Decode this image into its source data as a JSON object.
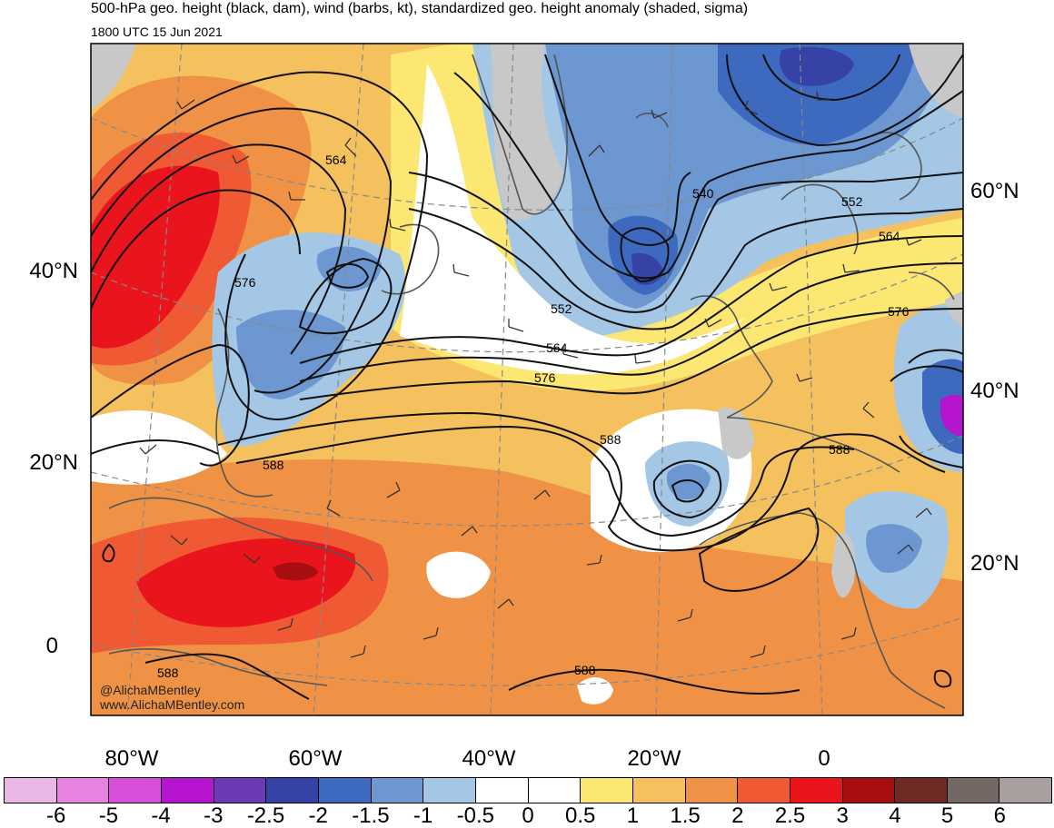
{
  "title": "500-hPa geo. height (black, dam), wind (barbs, kt), standardized geo. height anomaly (shaded, sigma)",
  "valid_time": "1800 UTC 15 Jun 2021",
  "credit": {
    "handle": "@AlichaMBentley",
    "site": "www.AlichaMBentley.com"
  },
  "latitude_labels_left": [
    {
      "text": "40°N"
    },
    {
      "text": "20°N"
    },
    {
      "text": "0"
    }
  ],
  "latitude_labels_right": [
    {
      "text": "60°N"
    },
    {
      "text": "40°N"
    },
    {
      "text": "20°N"
    }
  ],
  "longitude_labels": [
    {
      "text": "80°W"
    },
    {
      "text": "60°W"
    },
    {
      "text": "40°W"
    },
    {
      "text": "20°W"
    },
    {
      "text": "0"
    }
  ],
  "contour_labels": [
    "564",
    "576",
    "540",
    "552",
    "564",
    "576",
    "552",
    "564",
    "576",
    "588",
    "588",
    "588",
    "588",
    "588"
  ],
  "colorbar": {
    "colors": [
      "#e9b6e5",
      "#e683e0",
      "#d84fd9",
      "#b615cf",
      "#6a3bb4",
      "#3642a6",
      "#3d6abf",
      "#6d97d1",
      "#a5c7e6",
      "#ffffff",
      "#ffffff",
      "#fbe771",
      "#f5c15e",
      "#f09245",
      "#ef5a34",
      "#e9141c",
      "#a70e10",
      "#6f2a26",
      "#736863",
      "#a89f9e"
    ],
    "labels": [
      "-6",
      "-5",
      "-4",
      "-3",
      "-2.5",
      "-2",
      "-1.5",
      "-1",
      "-0.5",
      "0",
      "0.5",
      "1",
      "1.5",
      "2",
      "2.5",
      "3",
      "4",
      "5",
      "6"
    ]
  }
}
